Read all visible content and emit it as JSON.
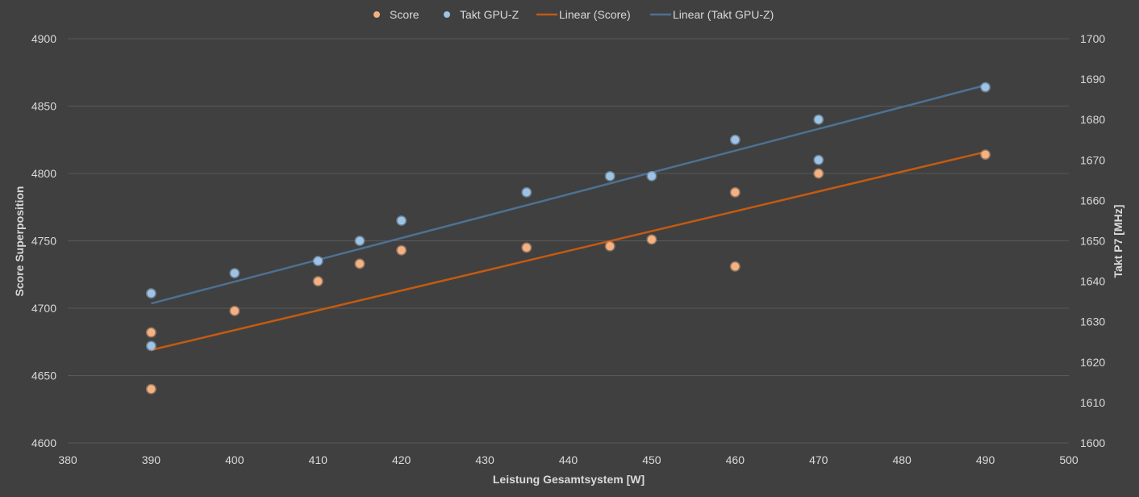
{
  "chart_data": {
    "type": "scatter",
    "xlabel": "Leistung Gesamtsystem [W]",
    "ylabel": "Score Superposition",
    "y2label": "Takt P7 [MHz]",
    "xlim": [
      380,
      500
    ],
    "ylim": [
      4600,
      4900
    ],
    "y2lim": [
      1600,
      1700
    ],
    "x_ticks": [
      380,
      390,
      400,
      410,
      420,
      430,
      440,
      450,
      460,
      470,
      480,
      490,
      500
    ],
    "y_ticks": [
      4600,
      4650,
      4700,
      4750,
      4800,
      4850,
      4900
    ],
    "y2_ticks": [
      1600,
      1610,
      1620,
      1630,
      1640,
      1650,
      1660,
      1670,
      1680,
      1690,
      1700
    ],
    "grid": true,
    "legend_position": "top",
    "series": [
      {
        "name": "Score",
        "axis": "left",
        "color": "#f4b183",
        "points": [
          [
            390,
            4682
          ],
          [
            390,
            4640
          ],
          [
            400,
            4698
          ],
          [
            410,
            4720
          ],
          [
            415,
            4733
          ],
          [
            420,
            4743
          ],
          [
            435,
            4745
          ],
          [
            445,
            4746
          ],
          [
            450,
            4751
          ],
          [
            460,
            4786
          ],
          [
            460,
            4731
          ],
          [
            470,
            4800
          ],
          [
            490,
            4814
          ]
        ]
      },
      {
        "name": "Takt GPU-Z",
        "axis": "right",
        "color": "#9dc3e6",
        "points": [
          [
            390,
            1637
          ],
          [
            390,
            1624
          ],
          [
            400,
            1642
          ],
          [
            410,
            1645
          ],
          [
            415,
            1650
          ],
          [
            420,
            1655
          ],
          [
            435,
            1662
          ],
          [
            445,
            1666
          ],
          [
            450,
            1666
          ],
          [
            460,
            1675
          ],
          [
            470,
            1680
          ],
          [
            470,
            1670
          ],
          [
            490,
            1688
          ]
        ]
      }
    ],
    "trendlines": [
      {
        "name": "Linear (Score)",
        "axis": "left",
        "color": "#c55a11",
        "x": [
          390,
          490
        ],
        "y": [
          4669,
          4816
        ]
      },
      {
        "name": "Linear (Takt GPU-Z)",
        "axis": "right",
        "color": "#4d7193",
        "x": [
          390,
          490
        ],
        "y": [
          1634.5,
          1688.5
        ]
      }
    ]
  }
}
